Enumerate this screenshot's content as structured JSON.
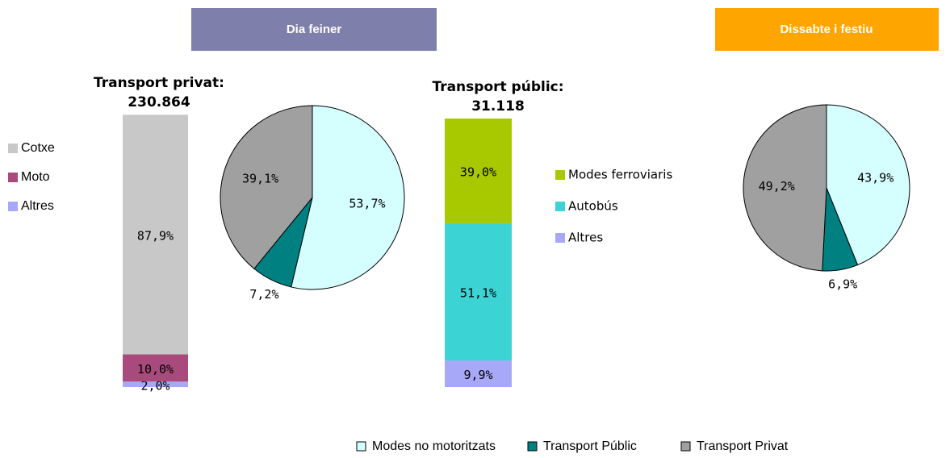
{
  "headers": [
    "Dia feiner",
    "Dissabte i festiu"
  ],
  "chart_data": [
    {
      "type": "stacked_bar",
      "title": "Transport privat:",
      "subtitle": "230.864",
      "ylim": [
        0,
        100
      ],
      "series": [
        {
          "name": "Cotxe",
          "color": "#C8C8C8",
          "values": [
            87.9
          ],
          "value_labels": [
            "87,9%"
          ]
        },
        {
          "name": "Moto",
          "color": "#A84A7C",
          "values": [
            10.0
          ],
          "value_labels": [
            "10,0%"
          ]
        },
        {
          "name": "Altres",
          "color": "#A8A8F8",
          "values": [
            2.0
          ],
          "value_labels": [
            "2,0%"
          ]
        }
      ]
    },
    {
      "type": "pie",
      "categories": [
        "Modes no motoritzats",
        "Transport Públic",
        "Transport Privat"
      ],
      "colors": [
        "#D5FFFF",
        "#008080",
        "#A0A0A0"
      ],
      "values": [
        53.7,
        7.2,
        39.1
      ],
      "value_labels": [
        "53,7%",
        "7,2%",
        "39,1%"
      ]
    },
    {
      "type": "stacked_bar",
      "title": "Transport públic:",
      "subtitle": "31.118",
      "ylim": [
        0,
        100
      ],
      "series": [
        {
          "name": "Modes  ferroviaris",
          "color": "#A8C800",
          "values": [
            39.0
          ],
          "value_labels": [
            "39,0%"
          ]
        },
        {
          "name": "Autobús",
          "color": "#3BD3D3",
          "values": [
            51.1
          ],
          "value_labels": [
            "51,1%"
          ]
        },
        {
          "name": "Altres",
          "color": "#A8A8F8",
          "values": [
            9.9
          ],
          "value_labels": [
            "9,9%"
          ]
        }
      ]
    },
    {
      "type": "pie",
      "colors": [
        "#D5FFFF",
        "#008080",
        "#A0A0A0"
      ],
      "values": [
        43.9,
        6.9,
        49.2
      ],
      "value_labels": [
        "43,9%",
        "6,9%",
        "49,2%"
      ]
    }
  ]
}
